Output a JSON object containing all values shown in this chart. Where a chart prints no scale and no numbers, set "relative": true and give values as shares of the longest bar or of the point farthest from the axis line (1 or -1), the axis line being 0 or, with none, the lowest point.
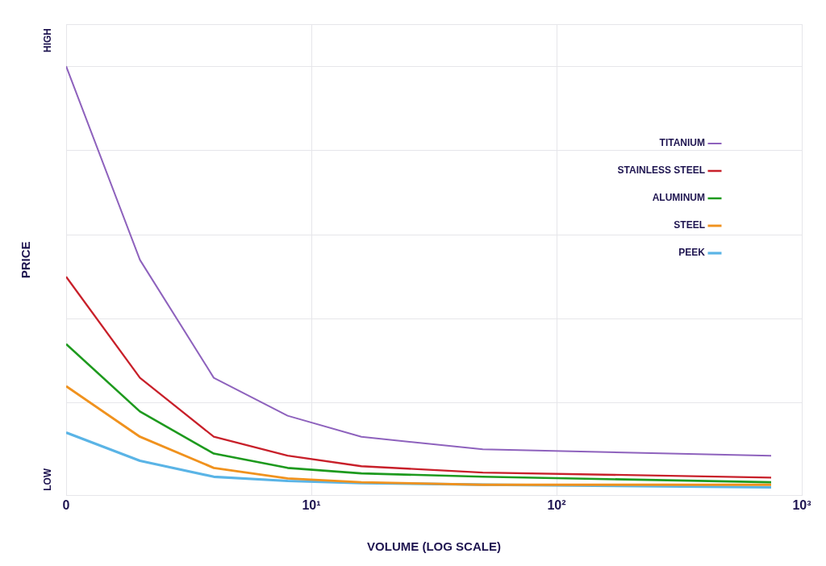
{
  "chart_data": {
    "type": "line",
    "xlabel": "VOLUME (LOG SCALE)",
    "ylabel": "PRICE",
    "x": [
      1,
      2,
      4,
      8,
      16,
      50,
      750
    ],
    "series": [
      {
        "name": "TITANIUM",
        "color": "#8e62bd",
        "values": [
          1.0,
          0.54,
          0.26,
          0.17,
          0.12,
          0.09,
          0.075
        ]
      },
      {
        "name": "STAINLESS STEEL",
        "color": "#c8202a",
        "values": [
          0.5,
          0.26,
          0.12,
          0.075,
          0.05,
          0.035,
          0.023
        ]
      },
      {
        "name": "ALUMINUM",
        "color": "#1e9a1e",
        "values": [
          0.34,
          0.18,
          0.08,
          0.046,
          0.033,
          0.025,
          0.012
        ]
      },
      {
        "name": "STEEL",
        "color": "#f0921e",
        "values": [
          0.24,
          0.12,
          0.046,
          0.021,
          0.012,
          0.006,
          0.006
        ]
      },
      {
        "name": "PEEK",
        "color": "#5ab4e6",
        "values": [
          0.13,
          0.063,
          0.025,
          0.015,
          0.01,
          0.006,
          0
        ]
      }
    ],
    "log": "x",
    "xlim": [
      0,
      1000
    ],
    "xticks": [
      0,
      {
        "value": 10,
        "label": "10¹"
      },
      {
        "value": 100,
        "label": "10²"
      },
      {
        "value": 1000,
        "label": "10³"
      }
    ],
    "relative": true,
    "annotations": [
      "HIGH",
      "LOW"
    ],
    "grid": true,
    "legend": "top right",
    "marker": "none",
    "line_style": "solid"
  }
}
